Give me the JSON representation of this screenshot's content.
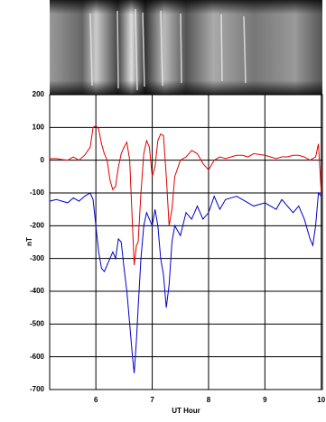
{
  "chart_data": {
    "type": "line",
    "x_label": "UT Hour",
    "y_label": "nT",
    "x": [
      5.18,
      5.3,
      5.4,
      5.5,
      5.6,
      5.7,
      5.8,
      5.9,
      5.95,
      6.0,
      6.05,
      6.1,
      6.15,
      6.2,
      6.25,
      6.3,
      6.35,
      6.4,
      6.45,
      6.5,
      6.55,
      6.6,
      6.65,
      6.68,
      6.72,
      6.75,
      6.8,
      6.85,
      6.9,
      6.95,
      7.0,
      7.05,
      7.1,
      7.15,
      7.2,
      7.25,
      7.3,
      7.35,
      7.4,
      7.5,
      7.6,
      7.7,
      7.8,
      7.9,
      8.0,
      8.1,
      8.2,
      8.3,
      8.4,
      8.5,
      8.6,
      8.7,
      8.8,
      9.0,
      9.2,
      9.3,
      9.4,
      9.5,
      9.6,
      9.7,
      9.8,
      9.85,
      9.9,
      9.95,
      10.0
    ],
    "series": [
      {
        "color": "#e00000",
        "values": [
          5,
          5,
          2,
          0,
          10,
          0,
          15,
          40,
          100,
          105,
          95,
          50,
          20,
          0,
          -60,
          -90,
          -80,
          -20,
          20,
          40,
          55,
          0,
          -200,
          -320,
          -260,
          -250,
          -100,
          20,
          60,
          40,
          -50,
          -20,
          60,
          80,
          75,
          -50,
          -200,
          -150,
          -50,
          0,
          10,
          30,
          20,
          -10,
          -30,
          0,
          10,
          5,
          10,
          15,
          15,
          10,
          20,
          15,
          5,
          10,
          10,
          15,
          15,
          10,
          0,
          5,
          10,
          50,
          -100
        ]
      },
      {
        "color": "#0000cc",
        "values": [
          -125,
          -120,
          -125,
          -130,
          -115,
          -125,
          -110,
          -100,
          -120,
          -200,
          -280,
          -330,
          -340,
          -320,
          -300,
          -280,
          -300,
          -240,
          -250,
          -330,
          -400,
          -500,
          -600,
          -650,
          -550,
          -450,
          -300,
          -200,
          -160,
          -180,
          -200,
          -150,
          -200,
          -300,
          -350,
          -450,
          -380,
          -250,
          -200,
          -230,
          -160,
          -180,
          -140,
          -180,
          -160,
          -110,
          -150,
          -120,
          -115,
          -110,
          -120,
          -130,
          -140,
          -130,
          -150,
          -120,
          -140,
          -160,
          -140,
          -180,
          -240,
          -260,
          -200,
          -100,
          -110
        ]
      }
    ],
    "xlim": [
      5.18,
      10.02
    ],
    "ylim": [
      -700,
      200
    ],
    "xticks": [
      6,
      7,
      8,
      9,
      10
    ],
    "yticks": [
      200,
      100,
      0,
      -100,
      -200,
      -300,
      -400,
      -500,
      -600,
      -700
    ],
    "grid": true
  }
}
